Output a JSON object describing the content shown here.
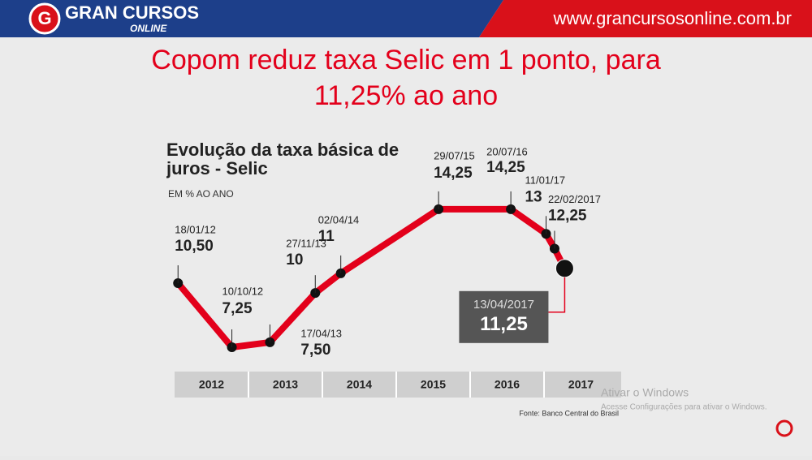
{
  "header": {
    "logo_top": "GRAN CURSOS",
    "logo_bottom": "ONLINE",
    "url": "www.grancursosonline.com.br"
  },
  "slide_title": "Copom reduz taxa Selic em 1 ponto, para 11,25% ao ano",
  "chart_data": {
    "type": "line",
    "title": "Evolução da taxa básica de juros - Selic",
    "subtitle": "EM % AO ANO",
    "x": [
      "18/01/12",
      "10/10/12",
      "17/04/13",
      "27/11/13",
      "02/04/14",
      "29/07/15",
      "20/07/16",
      "11/01/17",
      "22/02/2017",
      "13/04/2017"
    ],
    "values": [
      10.5,
      7.25,
      7.5,
      10,
      11,
      14.25,
      14.25,
      13,
      12.25,
      11.25
    ],
    "value_labels": [
      "10,50",
      "7,25",
      "7,50",
      "10",
      "11",
      "14,25",
      "14,25",
      "13",
      "12,25",
      "11,25"
    ],
    "xticks": [
      2012,
      2013,
      2014,
      2015,
      2016,
      2017
    ],
    "color": "#e3001b",
    "source": "Fonte: Banco Central do Brasil"
  },
  "watermark": {
    "title": "Ativar o Windows",
    "text": "Acesse Configurações para ativar o Windows."
  }
}
